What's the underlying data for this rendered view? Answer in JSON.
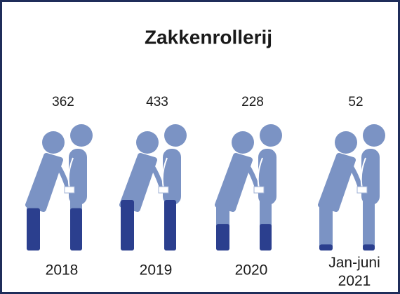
{
  "chart_data": {
    "type": "pictogram",
    "title": "Zakkenrollerij",
    "categories": [
      "2018",
      "2019",
      "2020",
      "Jan-juni 2021"
    ],
    "values": [
      362,
      433,
      228,
      52
    ],
    "color": "#7b93c4",
    "fill_color": "#2b3f8e"
  }
}
